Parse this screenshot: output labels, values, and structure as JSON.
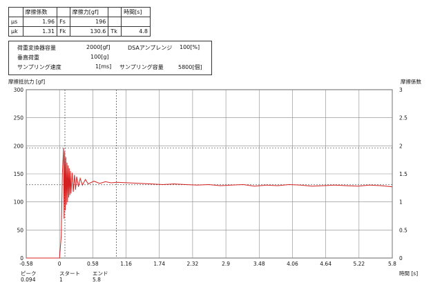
{
  "table1": {
    "headers": [
      "",
      "摩擦係数",
      "",
      "摩擦力[gf]",
      "",
      "時間[s]"
    ],
    "rows": [
      [
        "μs",
        "1.96",
        "Fs",
        "196",
        "",
        ""
      ],
      [
        "μk",
        "1.31",
        "Fk",
        "130.6",
        "Tk",
        "4.8"
      ]
    ]
  },
  "info": {
    "load_converter_label": "荷重変換器容量",
    "load_converter_value": "2000[gf]",
    "dsa_label": "DSAアンプレンジ",
    "dsa_value": "100[%]",
    "vertical_load_label": "垂直荷重",
    "vertical_load_value": "100[g]",
    "sampling_speed_label": "サンプリング速度",
    "sampling_speed_value": "1[ms]",
    "sampling_capacity_label": "サンプリング容量",
    "sampling_capacity_value": "5800[個]"
  },
  "markers": {
    "peak_label": "ピーク",
    "peak_value": "0.094",
    "start_label": "スタート",
    "start_value": "1",
    "end_label": "エンド",
    "end_value": "5.8"
  },
  "chart_data": {
    "type": "line",
    "ylabel": "摩擦抵抗力 [gf]",
    "y2label": "摩擦係数",
    "xlabel": "時間 [s]",
    "xlim": [
      -0.58,
      5.8
    ],
    "ylim": [
      0,
      300
    ],
    "y2lim": [
      0,
      3
    ],
    "xticks": [
      "-0.58",
      "0",
      "0.58",
      "1.16",
      "1.74",
      "2.32",
      "2.9",
      "3.48",
      "4.06",
      "4.64",
      "5.22",
      "5.8"
    ],
    "xtick_values": [
      -0.58,
      0,
      0.58,
      1.16,
      1.74,
      2.32,
      2.9,
      3.48,
      4.06,
      4.64,
      5.22,
      5.8
    ],
    "yticks": [
      "0",
      "50",
      "100",
      "150",
      "200",
      "250",
      "300"
    ],
    "ytick_values": [
      0,
      50,
      100,
      150,
      200,
      250,
      300
    ],
    "y2ticks": [
      "0",
      "0.5",
      "1",
      "1.5",
      "2",
      "2.5",
      "3"
    ],
    "y2tick_values": [
      0,
      0.5,
      1,
      1.5,
      2,
      2.5,
      3
    ],
    "grid": true,
    "reference_lines_y": [
      196,
      130.6
    ],
    "marker_lines_x": [
      0.094,
      0.99
    ],
    "series": [
      {
        "color": "#d42020",
        "x": [
          -0.58,
          0.0,
          0.03,
          0.05,
          0.07,
          0.08,
          0.09,
          0.1,
          0.11,
          0.12,
          0.13,
          0.14,
          0.15,
          0.16,
          0.17,
          0.18,
          0.19,
          0.2,
          0.22,
          0.24,
          0.26,
          0.28,
          0.3,
          0.33,
          0.36,
          0.4,
          0.45,
          0.5,
          0.6,
          0.7,
          0.8,
          0.9,
          1.0,
          1.2,
          1.4,
          1.6,
          1.8,
          2.0,
          2.2,
          2.4,
          2.6,
          2.8,
          3.0,
          3.2,
          3.4,
          3.6,
          3.8,
          4.0,
          4.2,
          4.4,
          4.6,
          4.8,
          5.0,
          5.2,
          5.4,
          5.6,
          5.8
        ],
        "y": [
          0,
          0,
          40,
          150,
          196,
          70,
          190,
          85,
          180,
          95,
          170,
          100,
          165,
          108,
          160,
          112,
          155,
          115,
          152,
          118,
          148,
          122,
          145,
          127,
          142,
          130,
          140,
          132,
          137,
          133,
          136,
          134,
          135,
          134,
          133,
          132,
          131,
          132,
          131,
          130,
          131,
          129,
          130,
          131,
          128,
          130,
          129,
          131,
          130,
          128,
          129,
          130,
          129,
          128,
          130,
          129,
          127
        ]
      }
    ]
  }
}
